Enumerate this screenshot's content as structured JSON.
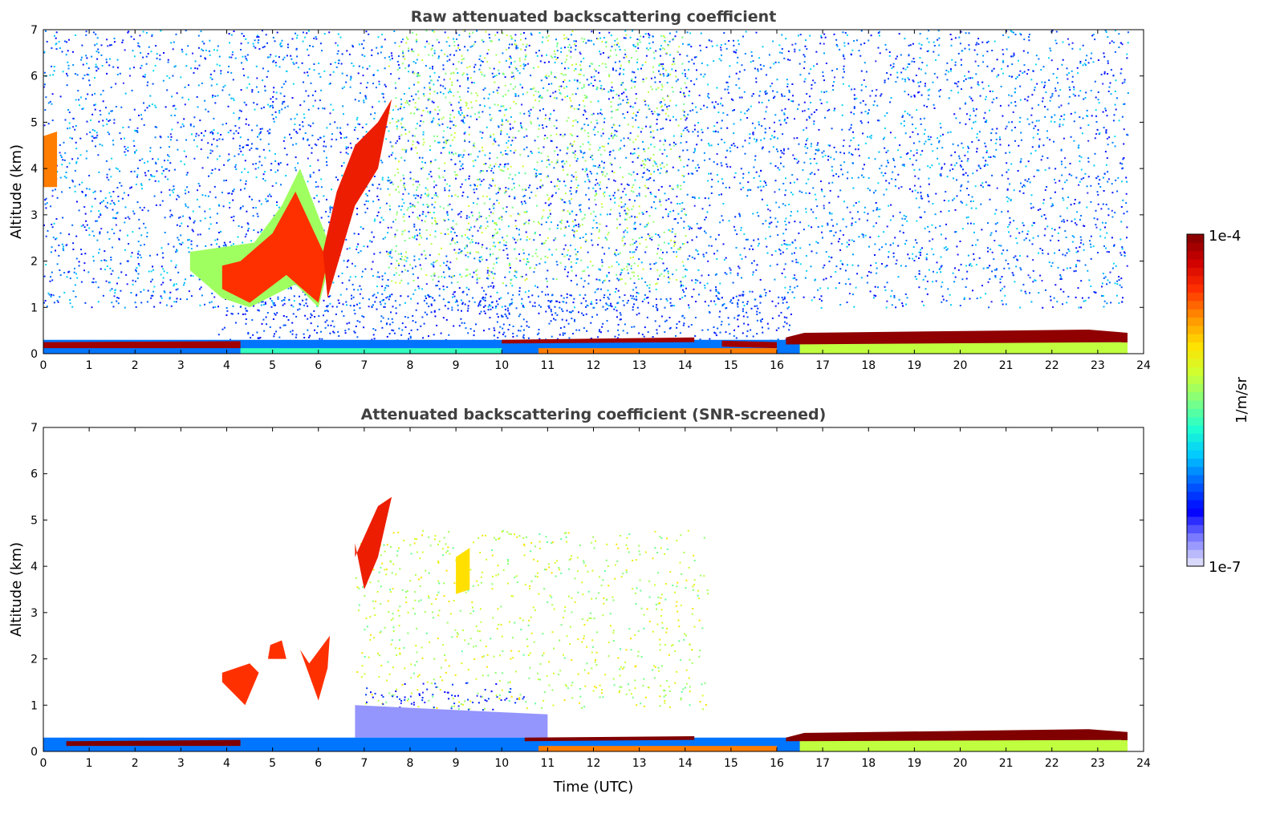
{
  "chart_data": {
    "type": "heatmap",
    "panels": [
      {
        "title": "Raw attenuated backscattering coefficient",
        "xlabel": "",
        "ylabel": "Altitude (km)",
        "xlim": [
          0,
          24
        ],
        "ylim": [
          0,
          7
        ],
        "xticks": [
          0,
          1,
          2,
          3,
          4,
          5,
          6,
          7,
          8,
          9,
          10,
          11,
          12,
          13,
          14,
          15,
          16,
          17,
          18,
          19,
          20,
          21,
          22,
          23,
          24
        ],
        "yticks": [
          0,
          1,
          2,
          3,
          4,
          5,
          6,
          7
        ],
        "features": [
          {
            "name": "noise-upper",
            "kind": "noise",
            "t": [
              0,
              23.65
            ],
            "alt": [
              1,
              7
            ],
            "log_value": [
              -6.6,
              -5.9
            ],
            "density": 0.5
          },
          {
            "name": "noise-green",
            "kind": "noise",
            "t": [
              7.5,
              14
            ],
            "alt": [
              1.5,
              7
            ],
            "log_value": [
              -5.6,
              -5.2
            ],
            "density": 0.35
          },
          {
            "name": "noise-low",
            "kind": "noise",
            "t": [
              3.8,
              16.3
            ],
            "alt": [
              0.3,
              1.3
            ],
            "log_value": [
              -6.5,
              -6.2
            ],
            "density": 0.6
          },
          {
            "name": "surface-layer",
            "kind": "poly",
            "log_value": -6.2,
            "points": [
              [
                0,
                0
              ],
              [
                23.65,
                0
              ],
              [
                23.65,
                0.3
              ],
              [
                0,
                0.3
              ]
            ]
          },
          {
            "name": "surface-cyan",
            "kind": "poly",
            "log_value": -5.7,
            "points": [
              [
                4.3,
                0
              ],
              [
                10,
                0
              ],
              [
                10,
                0.12
              ],
              [
                4.3,
                0.12
              ]
            ]
          },
          {
            "name": "near-surface-yellow",
            "kind": "poly",
            "log_value": -4.7,
            "points": [
              [
                10.8,
                0
              ],
              [
                16,
                0
              ],
              [
                16,
                0.12
              ],
              [
                10.8,
                0.12
              ]
            ]
          },
          {
            "name": "boundary-layer-green",
            "kind": "poly",
            "log_value": -5.3,
            "points": [
              [
                16.5,
                0
              ],
              [
                23.65,
                0
              ],
              [
                23.65,
                0.25
              ],
              [
                16.5,
                0.25
              ]
            ]
          },
          {
            "name": "boundary-top-1",
            "kind": "poly",
            "log_value": -4.1,
            "points": [
              [
                0,
                0.12
              ],
              [
                4.3,
                0.12
              ],
              [
                4.3,
                0.27
              ],
              [
                0,
                0.25
              ]
            ]
          },
          {
            "name": "boundary-top-2",
            "kind": "poly",
            "log_value": -4.1,
            "points": [
              [
                10,
                0.22
              ],
              [
                14.2,
                0.25
              ],
              [
                14.2,
                0.35
              ],
              [
                10,
                0.3
              ]
            ]
          },
          {
            "name": "boundary-top-3",
            "kind": "poly",
            "log_value": -4.1,
            "points": [
              [
                14.8,
                0.15
              ],
              [
                16,
                0.12
              ],
              [
                16,
                0.25
              ],
              [
                14.8,
                0.28
              ]
            ]
          },
          {
            "name": "boundary-top-4",
            "kind": "poly",
            "log_value": -4.05,
            "points": [
              [
                16.2,
                0.2
              ],
              [
                23.65,
                0.25
              ],
              [
                23.65,
                0.45
              ],
              [
                22.8,
                0.52
              ],
              [
                16.6,
                0.45
              ],
              [
                16.2,
                0.35
              ]
            ]
          },
          {
            "name": "cloud-early",
            "kind": "poly",
            "log_value": -4.7,
            "points": [
              [
                0,
                3.6
              ],
              [
                0.3,
                3.6
              ],
              [
                0.3,
                4.8
              ],
              [
                0,
                4.7
              ]
            ]
          },
          {
            "name": "cloud-mid-green",
            "kind": "poly",
            "log_value": -5.4,
            "points": [
              [
                3.2,
                1.8
              ],
              [
                3.9,
                1.2
              ],
              [
                4.5,
                1.0
              ],
              [
                5.5,
                1.5
              ],
              [
                6.0,
                1.0
              ],
              [
                6.3,
                2.2
              ],
              [
                5.6,
                4.0
              ],
              [
                5.2,
                3.2
              ],
              [
                4.6,
                2.4
              ],
              [
                3.2,
                2.2
              ]
            ]
          },
          {
            "name": "cloud-mid-orange",
            "kind": "poly",
            "log_value": -4.5,
            "points": [
              [
                3.9,
                1.4
              ],
              [
                4.5,
                1.1
              ],
              [
                5.3,
                1.7
              ],
              [
                6.0,
                1.1
              ],
              [
                6.2,
                2.0
              ],
              [
                5.5,
                3.5
              ],
              [
                5,
                2.6
              ],
              [
                4.3,
                2.0
              ],
              [
                3.9,
                1.9
              ]
            ]
          },
          {
            "name": "cloud-rising",
            "kind": "poly",
            "log_value": -4.4,
            "points": [
              [
                6.2,
                1.2
              ],
              [
                6.8,
                3.2
              ],
              [
                7.3,
                4.0
              ],
              [
                7.6,
                5.5
              ],
              [
                7.3,
                5.0
              ],
              [
                6.8,
                4.5
              ],
              [
                6.4,
                3.5
              ],
              [
                6.1,
                2.2
              ]
            ]
          }
        ]
      },
      {
        "title": "Attenuated backscattering coefficient (SNR-screened)",
        "xlabel": "Time (UTC)",
        "ylabel": "Altitude (km)",
        "xlim": [
          0,
          24
        ],
        "ylim": [
          0,
          7
        ],
        "xticks": [
          0,
          1,
          2,
          3,
          4,
          5,
          6,
          7,
          8,
          9,
          10,
          11,
          12,
          13,
          14,
          15,
          16,
          17,
          18,
          19,
          20,
          21,
          22,
          23,
          24
        ],
        "yticks": [
          0,
          1,
          2,
          3,
          4,
          5,
          6,
          7
        ],
        "features": [
          {
            "name": "noise-green",
            "kind": "noise",
            "t": [
              6.8,
              14.5
            ],
            "alt": [
              0.9,
              4.8
            ],
            "log_value": [
              -5.6,
              -5.0
            ],
            "density": 0.3
          },
          {
            "name": "noise-blue",
            "kind": "noise",
            "t": [
              7,
              10.5
            ],
            "alt": [
              0.4,
              1.5
            ],
            "log_value": [
              -6.6,
              -6.3
            ],
            "density": 0.4
          },
          {
            "name": "faint-layer",
            "kind": "poly",
            "log_value": -6.8,
            "points": [
              [
                6.8,
                0.3
              ],
              [
                11,
                0.3
              ],
              [
                11,
                0.8
              ],
              [
                6.8,
                1.0
              ]
            ]
          },
          {
            "name": "surface-layer",
            "kind": "poly",
            "log_value": -6.2,
            "points": [
              [
                0,
                0
              ],
              [
                23.65,
                0
              ],
              [
                23.65,
                0.3
              ],
              [
                0,
                0.3
              ]
            ]
          },
          {
            "name": "near-surface-yellow",
            "kind": "poly",
            "log_value": -4.7,
            "points": [
              [
                10.8,
                0
              ],
              [
                16,
                0
              ],
              [
                16,
                0.12
              ],
              [
                10.8,
                0.12
              ]
            ]
          },
          {
            "name": "boundary-layer-green",
            "kind": "poly",
            "log_value": -5.3,
            "points": [
              [
                16.5,
                0
              ],
              [
                23.65,
                0
              ],
              [
                23.65,
                0.25
              ],
              [
                16.5,
                0.25
              ]
            ]
          },
          {
            "name": "boundary-top-1",
            "kind": "poly",
            "log_value": -3.0,
            "points": [
              [
                0.5,
                0.12
              ],
              [
                4.3,
                0.12
              ],
              [
                4.3,
                0.25
              ],
              [
                0.5,
                0.22
              ]
            ]
          },
          {
            "name": "boundary-top-2",
            "kind": "poly",
            "log_value": -3.0,
            "points": [
              [
                10.5,
                0.22
              ],
              [
                14.2,
                0.25
              ],
              [
                14.2,
                0.33
              ],
              [
                10.5,
                0.3
              ]
            ]
          },
          {
            "name": "boundary-top-4",
            "kind": "poly",
            "log_value": -3.0,
            "points": [
              [
                16.2,
                0.22
              ],
              [
                23.65,
                0.25
              ],
              [
                23.65,
                0.42
              ],
              [
                22.8,
                0.48
              ],
              [
                16.6,
                0.4
              ],
              [
                16.2,
                0.3
              ]
            ]
          },
          {
            "name": "cloud-a",
            "kind": "poly",
            "log_value": -4.5,
            "points": [
              [
                3.9,
                1.5
              ],
              [
                4.4,
                1.0
              ],
              [
                4.7,
                1.7
              ],
              [
                4.5,
                1.9
              ],
              [
                3.9,
                1.7
              ]
            ]
          },
          {
            "name": "cloud-b",
            "kind": "poly",
            "log_value": -4.5,
            "points": [
              [
                4.9,
                2.0
              ],
              [
                5.3,
                2.0
              ],
              [
                5.2,
                2.4
              ],
              [
                4.95,
                2.3
              ]
            ]
          },
          {
            "name": "cloud-c",
            "kind": "poly",
            "log_value": -4.5,
            "points": [
              [
                5.6,
                2.2
              ],
              [
                6.0,
                1.1
              ],
              [
                6.2,
                1.8
              ],
              [
                6.25,
                2.5
              ],
              [
                5.8,
                1.9
              ]
            ]
          },
          {
            "name": "cloud-rising",
            "kind": "poly",
            "log_value": -4.4,
            "points": [
              [
                6.8,
                4.5
              ],
              [
                7.0,
                3.5
              ],
              [
                7.3,
                4.2
              ],
              [
                7.6,
                5.5
              ],
              [
                7.3,
                5.3
              ],
              [
                6.8,
                4.2
              ]
            ]
          },
          {
            "name": "cloud-small",
            "kind": "poly",
            "log_value": -5.0,
            "points": [
              [
                9.0,
                3.4
              ],
              [
                9.3,
                3.5
              ],
              [
                9.3,
                4.4
              ],
              [
                9.0,
                4.2
              ]
            ]
          }
        ]
      }
    ],
    "colorbar": {
      "min_label": "1e-7",
      "max_label": "1e-4",
      "label": "1/m/sr",
      "log_range": [
        -7,
        -4
      ],
      "colormap": [
        "#e8e8fa",
        "#8080ff",
        "#0000ff",
        "#0060ff",
        "#00c8ff",
        "#20ffd0",
        "#80ff80",
        "#d0ff30",
        "#ffe000",
        "#ff9000",
        "#ff3000",
        "#d00000",
        "#800000"
      ]
    },
    "data_end_time": 23.65
  }
}
